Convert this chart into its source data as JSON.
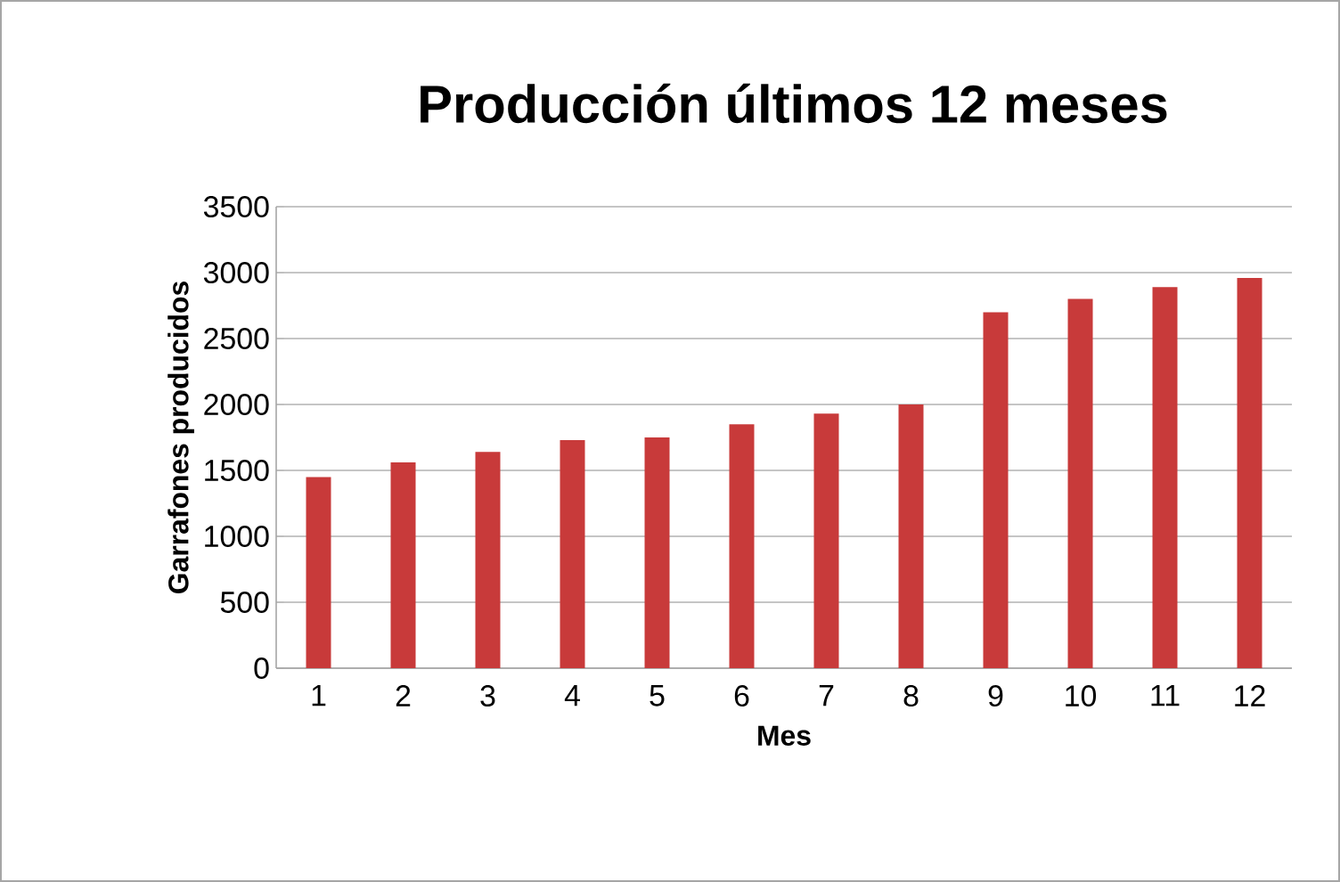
{
  "chart_data": {
    "type": "bar",
    "title": "Producción últimos 12 meses",
    "xlabel": "Mes",
    "ylabel": "Garrafones producidos",
    "categories": [
      "1",
      "2",
      "3",
      "4",
      "5",
      "6",
      "7",
      "8",
      "9",
      "10",
      "11",
      "12"
    ],
    "values": [
      1450,
      1560,
      1640,
      1730,
      1750,
      1850,
      1930,
      2000,
      2700,
      2800,
      2890,
      2960
    ],
    "color": "#c83a3a",
    "ylim": [
      0,
      3500
    ],
    "yticks": [
      0,
      500,
      1000,
      1500,
      2000,
      2500,
      3000,
      3500
    ],
    "grid": "y"
  }
}
